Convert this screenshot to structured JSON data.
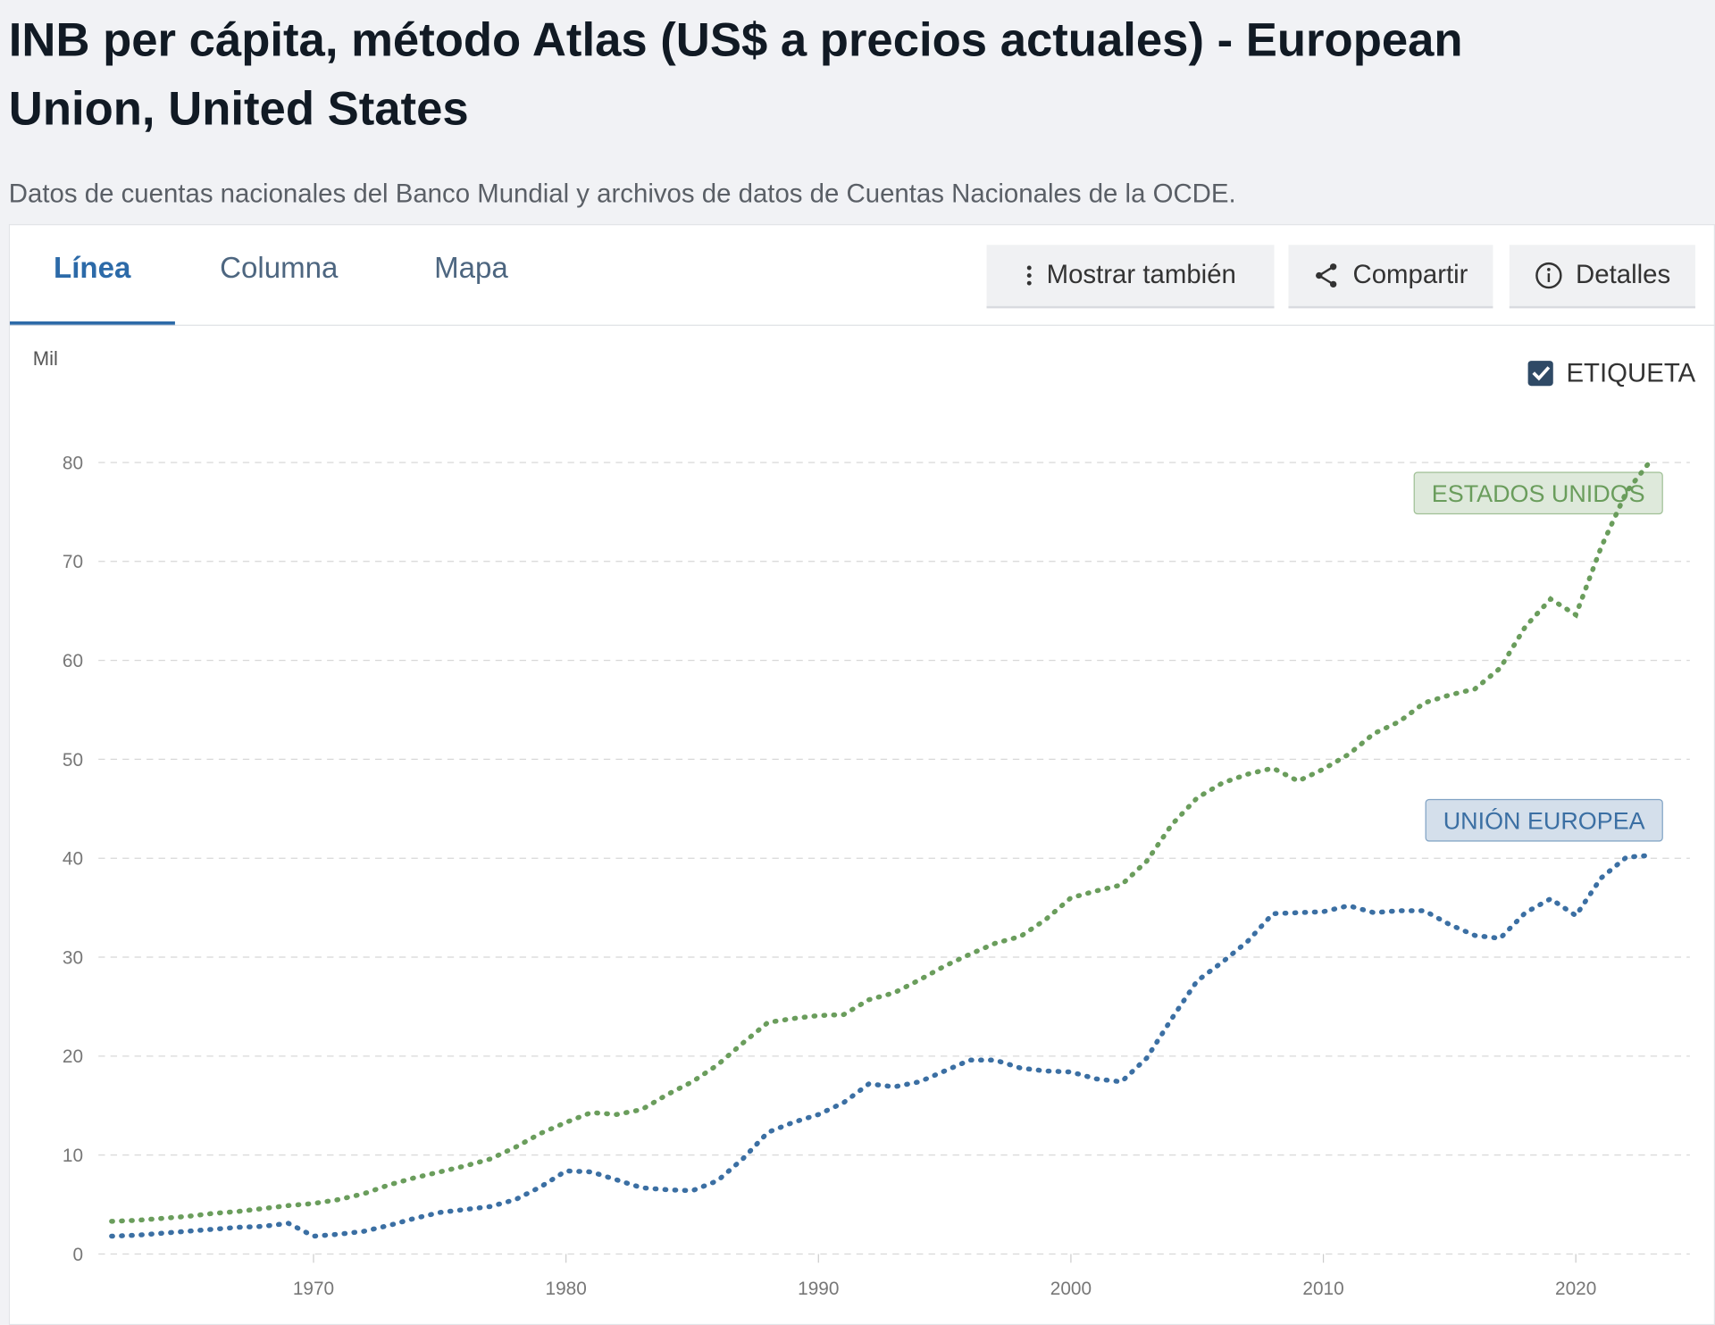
{
  "chart_data": {
    "type": "line",
    "title": "INB per cápita, método Atlas (US$ a precios actuales) - European Union, United States",
    "subtitle": "Datos de cuentas nacionales del Banco Mundial y archivos de datos de Cuentas Nacionales de la OCDE.",
    "y_label": "Mil",
    "x": [
      1962,
      1963,
      1964,
      1965,
      1966,
      1967,
      1968,
      1969,
      1970,
      1971,
      1972,
      1973,
      1974,
      1975,
      1976,
      1977,
      1978,
      1979,
      1980,
      1981,
      1982,
      1983,
      1984,
      1985,
      1986,
      1987,
      1988,
      1989,
      1990,
      1991,
      1992,
      1993,
      1994,
      1995,
      1996,
      1997,
      1998,
      1999,
      2000,
      2001,
      2002,
      2003,
      2004,
      2005,
      2006,
      2007,
      2008,
      2009,
      2010,
      2011,
      2012,
      2013,
      2014,
      2015,
      2016,
      2017,
      2018,
      2019,
      2020,
      2021,
      2022,
      2023
    ],
    "series": [
      {
        "name": "ESTADOS UNIDOS",
        "color": "#6a9d5c",
        "values": [
          3.3,
          3.4,
          3.6,
          3.8,
          4.1,
          4.3,
          4.6,
          4.9,
          5.1,
          5.5,
          6.1,
          7.0,
          7.7,
          8.3,
          8.9,
          9.6,
          10.8,
          12.2,
          13.3,
          14.3,
          14.1,
          14.6,
          16.1,
          17.4,
          19.1,
          21.3,
          23.4,
          23.8,
          24.1,
          24.2,
          25.7,
          26.4,
          27.7,
          29.1,
          30.3,
          31.4,
          32.1,
          33.8,
          36.0,
          36.7,
          37.3,
          39.7,
          43.4,
          46.1,
          47.6,
          48.5,
          49.1,
          47.8,
          49.0,
          50.5,
          52.6,
          53.8,
          55.7,
          56.5,
          57.1,
          59.2,
          63.4,
          66.2,
          64.6,
          71.4,
          77.0,
          80.3
        ]
      },
      {
        "name": "UNIÓN EUROPEA",
        "color": "#3b6fa3",
        "values": [
          1.8,
          1.9,
          2.1,
          2.3,
          2.5,
          2.7,
          2.8,
          3.1,
          1.8,
          2.0,
          2.3,
          2.9,
          3.6,
          4.2,
          4.5,
          4.8,
          5.5,
          6.8,
          8.4,
          8.3,
          7.5,
          6.7,
          6.5,
          6.4,
          7.4,
          9.6,
          12.3,
          13.3,
          14.1,
          15.3,
          17.2,
          16.9,
          17.4,
          18.5,
          19.6,
          19.6,
          18.8,
          18.5,
          18.4,
          17.7,
          17.4,
          19.8,
          23.8,
          27.6,
          29.5,
          31.6,
          34.4,
          34.5,
          34.6,
          35.2,
          34.5,
          34.7,
          34.7,
          33.3,
          32.2,
          31.9,
          34.5,
          35.9,
          34.2,
          38.0,
          40.1,
          40.3
        ]
      }
    ],
    "xlim": [
      1962,
      2023
    ],
    "xticks": [
      1970,
      1980,
      1990,
      2000,
      2010,
      2020
    ],
    "ylim": [
      0,
      80
    ],
    "yticks": [
      0,
      10,
      20,
      30,
      40,
      50,
      60,
      70,
      80
    ],
    "grid": true
  },
  "ui": {
    "tabs": [
      "Línea",
      "Columna",
      "Mapa"
    ],
    "buttons": [
      "Mostrar también",
      "Compartir",
      "Detalles"
    ],
    "label_toggle": "ETIQUETA"
  }
}
